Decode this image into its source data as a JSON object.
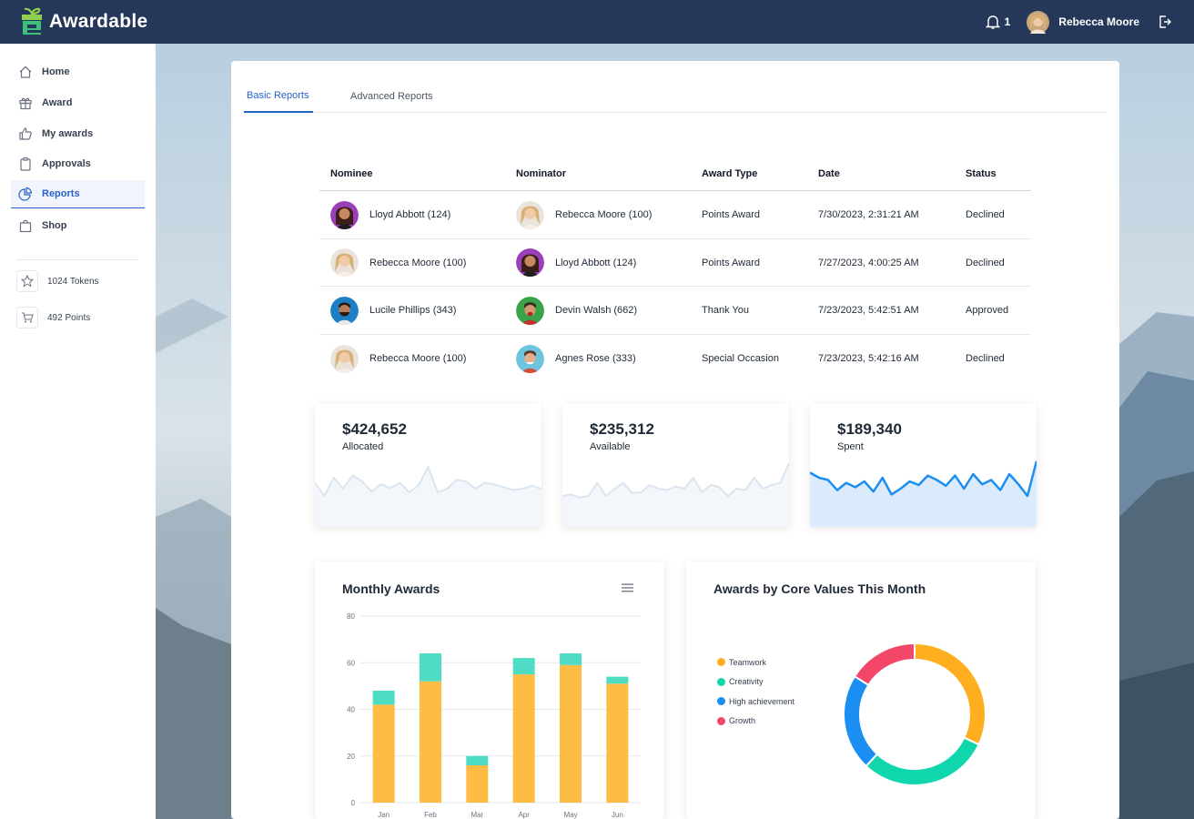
{
  "app": {
    "name": "Awardable"
  },
  "header": {
    "notification_count": "1",
    "user_name": "Rebecca Moore"
  },
  "sidebar": {
    "items": [
      {
        "label": "Home",
        "icon": "home-icon"
      },
      {
        "label": "Award",
        "icon": "gift-icon"
      },
      {
        "label": "My awards",
        "icon": "thumbs-up-icon"
      },
      {
        "label": "Approvals",
        "icon": "clipboard-icon"
      },
      {
        "label": "Reports",
        "icon": "pie-chart-icon",
        "active": true
      },
      {
        "label": "Shop",
        "icon": "shopping-bag-icon"
      }
    ],
    "stats": [
      {
        "label": "1024 Tokens",
        "icon": "star-icon"
      },
      {
        "label": "492 Points",
        "icon": "cart-icon"
      }
    ]
  },
  "tabs": [
    {
      "label": "Basic Reports",
      "active": true
    },
    {
      "label": "Advanced Reports",
      "active": false
    }
  ],
  "table": {
    "headers": [
      "Nominee",
      "Nominator",
      "Award Type",
      "Date",
      "Status"
    ],
    "rows": [
      {
        "nominee": "Lloyd Abbott (124)",
        "nominator": "Rebecca Moore (100)",
        "award_type": "Points Award",
        "date": "7/30/2023, 2:31:21 AM",
        "status": "Declined"
      },
      {
        "nominee": "Rebecca Moore (100)",
        "nominator": "Lloyd Abbott (124)",
        "award_type": "Points Award",
        "date": "7/27/2023, 4:00:25 AM",
        "status": "Declined"
      },
      {
        "nominee": "Lucile Phillips (343)",
        "nominator": "Devin Walsh (662)",
        "award_type": "Thank You",
        "date": "7/23/2023, 5:42:51 AM",
        "status": "Approved"
      },
      {
        "nominee": "Rebecca Moore (100)",
        "nominator": "Agnes Rose (333)",
        "award_type": "Special Occasion",
        "date": "7/23/2023, 5:42:16 AM",
        "status": "Declined"
      }
    ]
  },
  "stat_cards": [
    {
      "amount": "$424,652",
      "label": "Allocated"
    },
    {
      "amount": "$235,312",
      "label": "Available"
    },
    {
      "amount": "$189,340",
      "label": "Spent"
    }
  ],
  "monthly_awards": {
    "title": "Monthly Awards"
  },
  "core_values": {
    "title": "Awards by Core Values This Month"
  },
  "colors": {
    "header_bg": "#26385a",
    "accent": "#2563c9",
    "bar_primary": "#ffbc45",
    "bar_secondary": "#4fdcc4",
    "teamwork": "#ffae1f",
    "creativity": "#10d6ad",
    "high_achievement": "#1b8ef2",
    "growth": "#f24768"
  },
  "chart_data": [
    {
      "type": "bar",
      "title": "Monthly Awards",
      "stacked": true,
      "categories": [
        "Jan",
        "Feb",
        "Mar",
        "Apr",
        "May",
        "Jun"
      ],
      "series": [
        {
          "values": [
            42,
            52,
            16,
            55,
            59,
            51
          ],
          "color": "#ffbc45"
        },
        {
          "values": [
            6,
            12,
            4,
            7,
            5,
            3
          ],
          "color": "#4fdcc4"
        }
      ],
      "ylim": [
        0,
        80
      ],
      "yticks": [
        "0",
        "20",
        "40",
        "60",
        "80"
      ],
      "grid": true
    },
    {
      "type": "pie",
      "title": "Awards by Core Values This Month",
      "donut": true,
      "labels": [
        "Teamwork",
        "Creativity",
        "High achievement",
        "Growth"
      ],
      "values": [
        32,
        30,
        22,
        16
      ],
      "colors": [
        "#ffae1f",
        "#10d6ad",
        "#1b8ef2",
        "#f24768"
      ],
      "legend": "left"
    },
    {
      "type": "line",
      "title": "",
      "values": [
        48,
        30,
        55,
        40,
        58,
        50,
        36,
        46,
        41,
        48,
        35,
        45,
        70,
        35,
        40,
        52,
        50,
        40,
        48,
        46,
        42,
        38,
        40,
        44,
        40
      ],
      "ylim": [
        0,
        100
      ]
    },
    {
      "type": "line",
      "title": "",
      "values": [
        30,
        32,
        28,
        30,
        48,
        30,
        40,
        48,
        34,
        35,
        45,
        40,
        38,
        43,
        40,
        55,
        35,
        45,
        42,
        30,
        40,
        38,
        55,
        40,
        45,
        48,
        75
      ],
      "ylim": [
        0,
        100
      ]
    },
    {
      "type": "line",
      "title": "",
      "values": [
        62,
        55,
        52,
        38,
        48,
        42,
        50,
        36,
        55,
        32,
        40,
        50,
        45,
        58,
        52,
        44,
        58,
        40,
        60,
        46,
        52,
        38,
        60,
        46,
        30,
        78
      ],
      "ylim": [
        0,
        100
      ]
    }
  ]
}
